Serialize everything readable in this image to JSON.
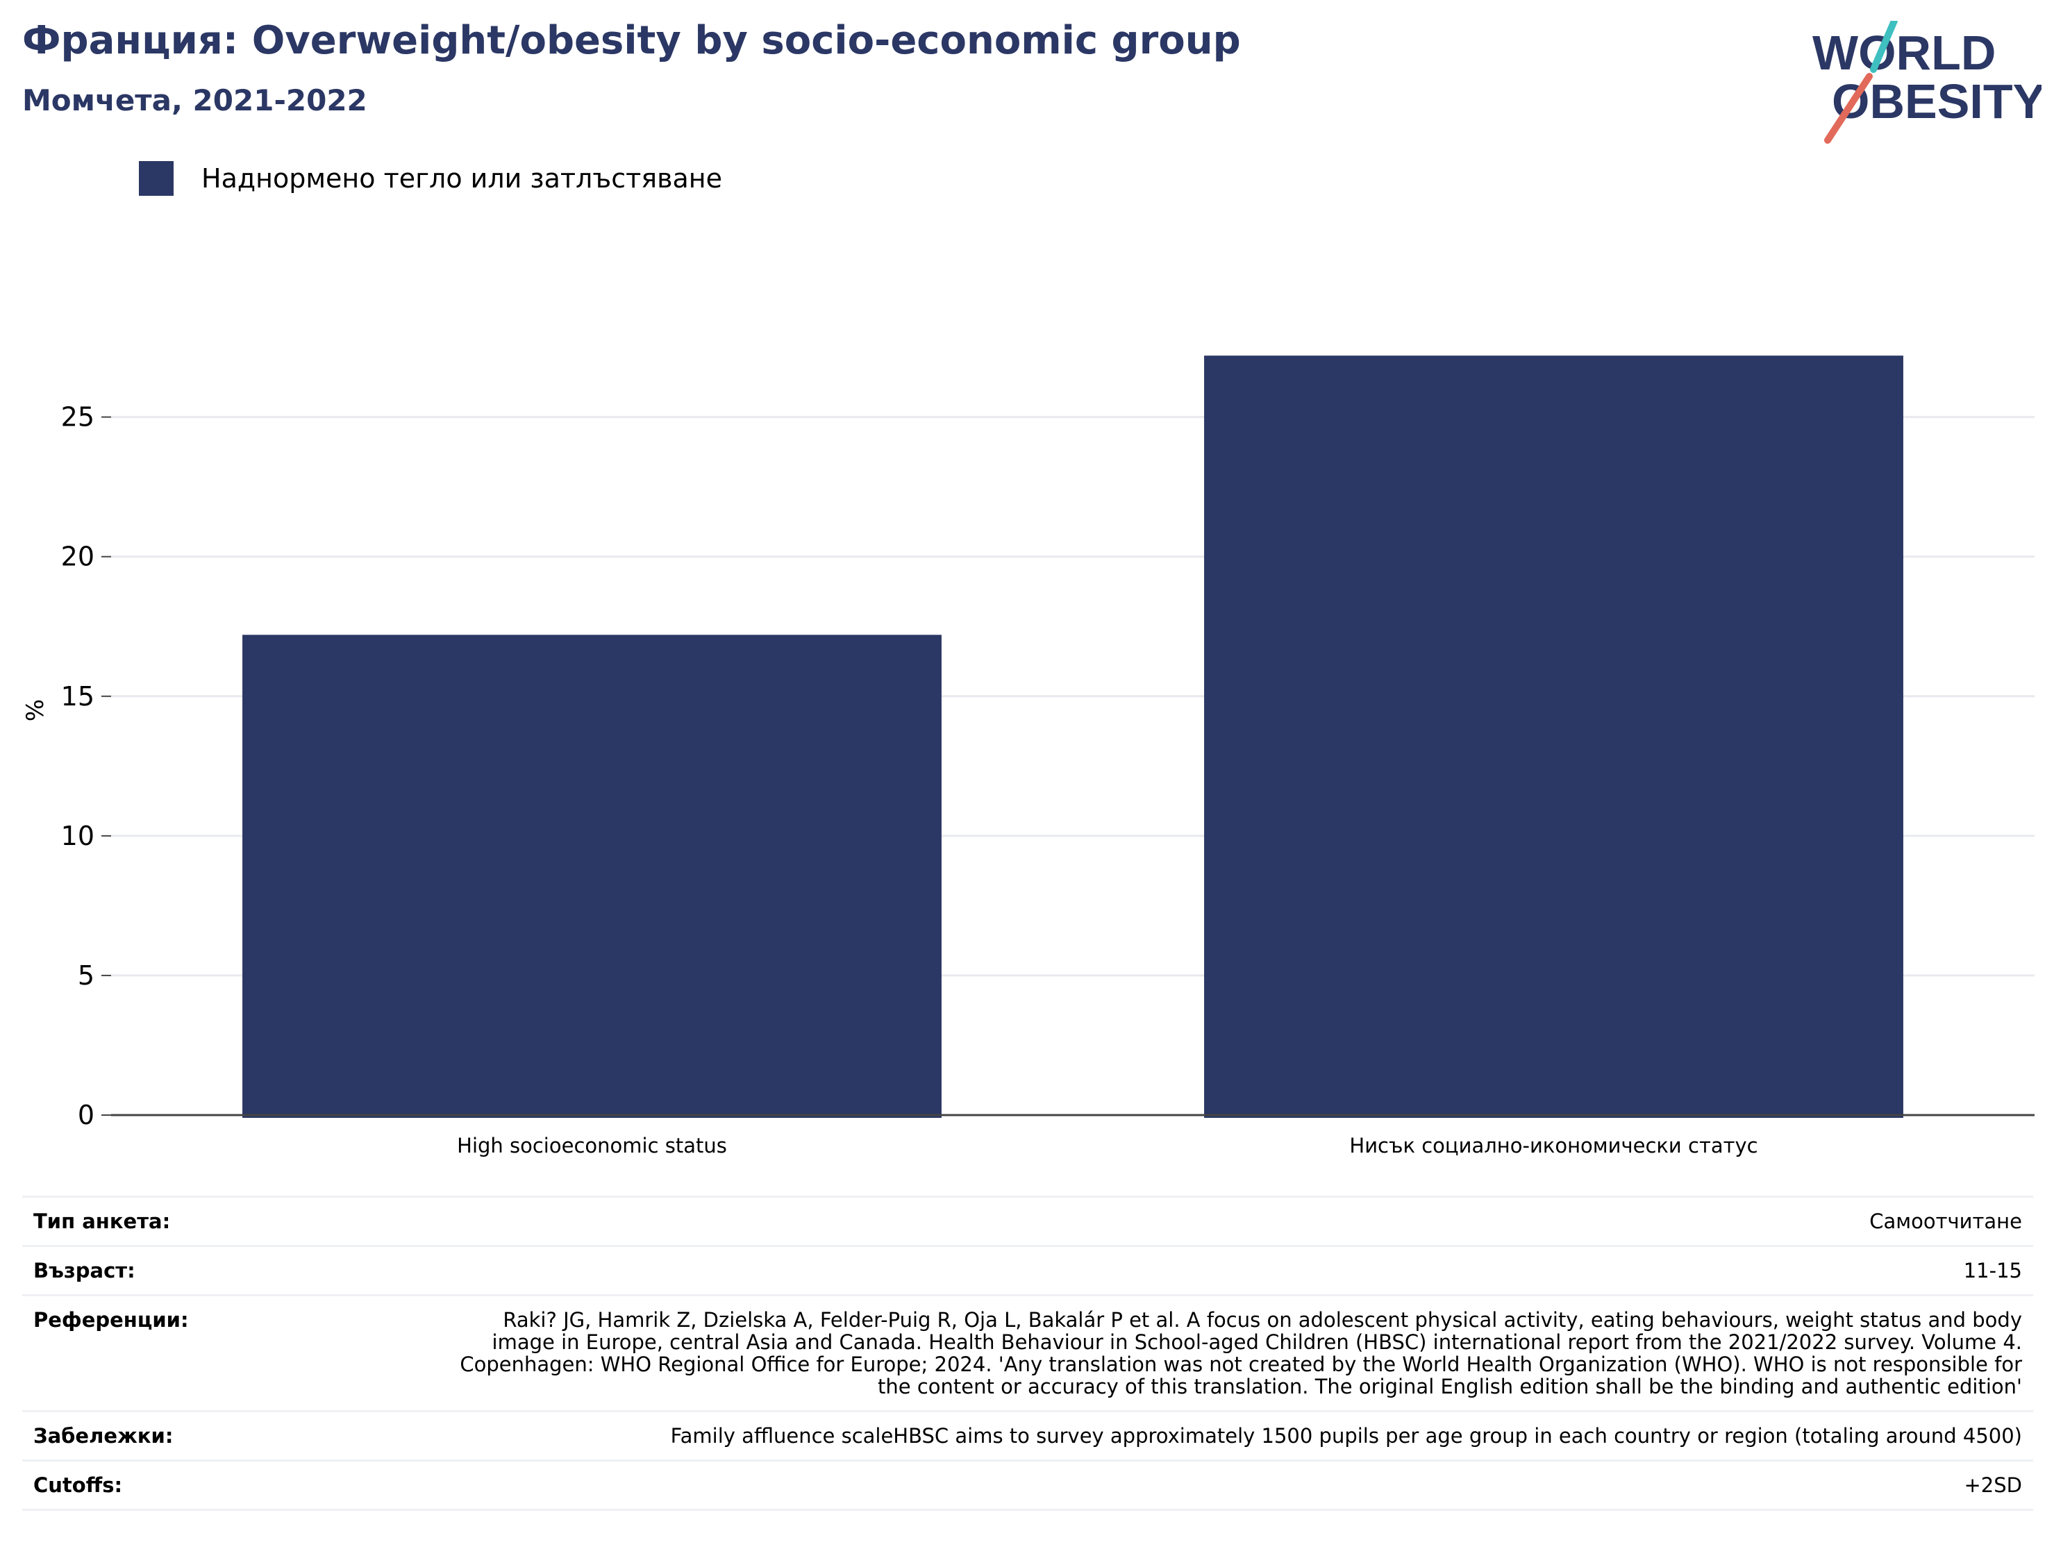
{
  "header": {
    "title": "Франция: Overweight/obesity by socio-economic group",
    "subtitle": "Момчета, 2021-2022"
  },
  "logo": {
    "line1": "WORLD",
    "line2": "OBESITY",
    "colors": {
      "text": "#2b3764",
      "slash_top": "#3fbfbf",
      "slash_bottom": "#e26a5a"
    }
  },
  "legend": {
    "items": [
      {
        "label": "Наднормено тегло или затлъстяване",
        "color": "#2b3764"
      }
    ]
  },
  "chart_data": {
    "type": "bar",
    "categories": [
      "High socioeconomic status",
      "Нисък социално-икономически статус"
    ],
    "series": [
      {
        "name": "Наднормено тегло или затлъстяване",
        "values": [
          17.2,
          27.2
        ],
        "color": "#2b3764"
      }
    ],
    "title": "",
    "xlabel": "",
    "ylabel": "%",
    "ylim": [
      0,
      28
    ],
    "yticks": [
      0,
      5,
      10,
      15,
      20,
      25
    ],
    "grid": true,
    "legend_position": "top-left"
  },
  "meta": {
    "rows": [
      {
        "key": "Тип анкета:",
        "value": "Самоотчитане"
      },
      {
        "key": "Възраст:",
        "value": "11-15"
      },
      {
        "key": "Референции:",
        "value": "Raki? JG, Hamrik Z, Dzielska A, Felder-Puig R, Oja L, Bakalár P et al. A focus on adolescent physical activity, eating behaviours, weight status and body image in Europe, central Asia and Canada. Health Behaviour in School-aged Children (HBSC) international report from the 2021/2022 survey. Volume 4. Copenhagen: WHO Regional Office for Europe; 2024. 'Any translation was not created by the World Health Organization (WHO). WHO is not responsible for the content or accuracy of this translation. The original English edition shall be the binding and authentic edition'"
      },
      {
        "key": "Забележки:",
        "value": "Family affluence scaleHBSC aims to survey approximately 1500 pupils per age group in each country or region (totaling around 4500)"
      },
      {
        "key": "Cutoffs:",
        "value": "+2SD"
      }
    ]
  }
}
